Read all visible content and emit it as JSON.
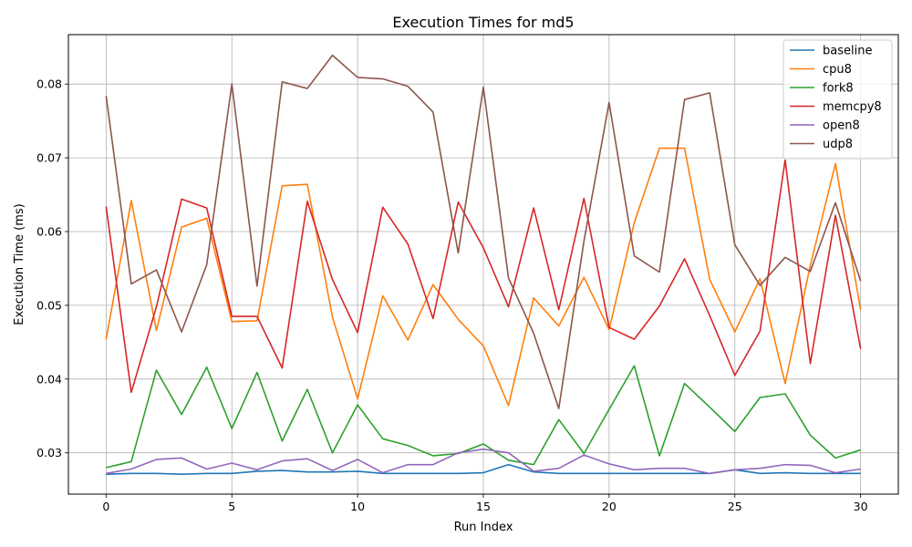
{
  "chart_data": {
    "type": "line",
    "title": "Execution Times for md5",
    "xlabel": "Run Index",
    "ylabel": "Execution Time (ms)",
    "xlim": [
      -1.5,
      31.5
    ],
    "ylim": [
      0.0244,
      0.0867
    ],
    "xticks": [
      0,
      5,
      10,
      15,
      20,
      25,
      30
    ],
    "yticks": [
      0.03,
      0.04,
      0.05,
      0.06,
      0.07,
      0.08
    ],
    "ytick_labels": [
      "0.03",
      "0.04",
      "0.05",
      "0.06",
      "0.07",
      "0.08"
    ],
    "grid": true,
    "legend_position": "top-right",
    "x": [
      0,
      1,
      2,
      3,
      4,
      5,
      6,
      7,
      8,
      9,
      10,
      11,
      12,
      13,
      14,
      15,
      16,
      17,
      18,
      19,
      20,
      21,
      22,
      23,
      24,
      25,
      26,
      27,
      28,
      29,
      30
    ],
    "series": [
      {
        "name": "baseline",
        "color": "#1f77b4",
        "values": [
          0.0271,
          0.0272,
          0.0272,
          0.0271,
          0.0272,
          0.0272,
          0.0275,
          0.0276,
          0.0274,
          0.0274,
          0.0275,
          0.0272,
          0.0272,
          0.0272,
          0.0272,
          0.0273,
          0.0284,
          0.0274,
          0.0272,
          0.0272,
          0.0272,
          0.0272,
          0.0272,
          0.0272,
          0.0272,
          0.0277,
          0.0272,
          0.0273,
          0.0272,
          0.0272,
          0.0272
        ]
      },
      {
        "name": "cpu8",
        "color": "#ff7f0e",
        "values": [
          0.0454,
          0.0642,
          0.0466,
          0.0606,
          0.0618,
          0.0478,
          0.0479,
          0.0662,
          0.0664,
          0.0484,
          0.0373,
          0.0513,
          0.0453,
          0.0528,
          0.0481,
          0.0445,
          0.0364,
          0.051,
          0.0472,
          0.0538,
          0.0467,
          0.0612,
          0.0713,
          0.0713,
          0.0535,
          0.0464,
          0.0536,
          0.0394,
          0.0554,
          0.0692,
          0.0494
        ]
      },
      {
        "name": "fork8",
        "color": "#2ca02c",
        "values": [
          0.028,
          0.0288,
          0.0412,
          0.0352,
          0.0416,
          0.0333,
          0.0409,
          0.0316,
          0.0386,
          0.03,
          0.0365,
          0.0319,
          0.031,
          0.0296,
          0.0299,
          0.0312,
          0.029,
          0.0284,
          0.0345,
          0.0299,
          0.0359,
          0.0418,
          0.0296,
          0.0394,
          0.0362,
          0.0329,
          0.0375,
          0.038,
          0.0324,
          0.0293,
          0.0304
        ]
      },
      {
        "name": "memcpy8",
        "color": "#d62728",
        "values": [
          0.0634,
          0.0382,
          0.0498,
          0.0644,
          0.0632,
          0.0485,
          0.0485,
          0.0415,
          0.0641,
          0.0535,
          0.0463,
          0.0633,
          0.0583,
          0.0482,
          0.064,
          0.0578,
          0.0498,
          0.0632,
          0.0494,
          0.0645,
          0.047,
          0.0454,
          0.0499,
          0.0563,
          0.0486,
          0.0405,
          0.0465,
          0.0697,
          0.0421,
          0.0622,
          0.0441
        ]
      },
      {
        "name": "open8",
        "color": "#9467bd",
        "values": [
          0.0272,
          0.0278,
          0.0291,
          0.0293,
          0.0278,
          0.0286,
          0.0277,
          0.0289,
          0.0292,
          0.0276,
          0.0291,
          0.0273,
          0.0284,
          0.0284,
          0.03,
          0.0305,
          0.03,
          0.0275,
          0.0279,
          0.0297,
          0.0285,
          0.0277,
          0.0279,
          0.0279,
          0.0272,
          0.0277,
          0.0279,
          0.0284,
          0.0283,
          0.0273,
          0.0278
        ]
      },
      {
        "name": "udp8",
        "color": "#8c564b",
        "values": [
          0.0784,
          0.0529,
          0.0548,
          0.0464,
          0.0555,
          0.08,
          0.0526,
          0.0803,
          0.0794,
          0.0839,
          0.0809,
          0.0807,
          0.0797,
          0.0762,
          0.0571,
          0.0796,
          0.0537,
          0.0462,
          0.036,
          0.0587,
          0.0775,
          0.0567,
          0.0545,
          0.0779,
          0.0788,
          0.0582,
          0.0527,
          0.0565,
          0.0546,
          0.0639,
          0.0533
        ]
      }
    ]
  }
}
